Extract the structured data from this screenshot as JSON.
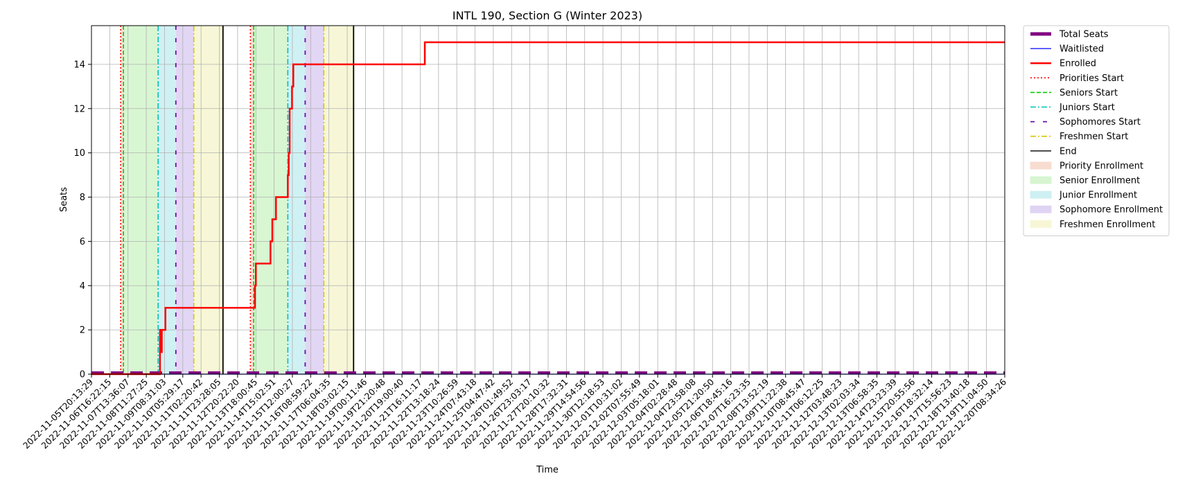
{
  "chart_data": {
    "type": "line",
    "title": "INTL 190, Section G (Winter 2023)",
    "xlabel": "Time",
    "ylabel": "Seats",
    "ylim": [
      0,
      15.75
    ],
    "y_ticks": [
      0,
      2,
      4,
      6,
      8,
      10,
      12,
      14
    ],
    "grid": true,
    "legend_placement": "outside-right-top",
    "x_tick_labels": [
      "2022-11-05T20:13:29",
      "2022-11-06T16:22:15",
      "2022-11-07T13:36:07",
      "2022-11-08T11:27:25",
      "2022-11-09T08:31:03",
      "2022-11-10T05:29:17",
      "2022-11-11T02:20:42",
      "2022-11-11T23:28:05",
      "2022-11-12T20:22:20",
      "2022-11-13T18:00:45",
      "2022-11-14T15:02:51",
      "2022-11-15T12:00:27",
      "2022-11-16T08:59:22",
      "2022-11-17T06:04:35",
      "2022-11-18T03:02:15",
      "2022-11-19T00:11:46",
      "2022-11-19T21:20:48",
      "2022-11-20T19:00:40",
      "2022-11-21T16:11:17",
      "2022-11-22T13:18:24",
      "2022-11-23T10:26:59",
      "2022-11-24T07:43:18",
      "2022-11-25T04:47:42",
      "2022-11-26T01:49:52",
      "2022-11-26T23:03:17",
      "2022-11-27T20:10:32",
      "2022-11-28T17:32:31",
      "2022-11-29T14:54:56",
      "2022-11-30T12:18:53",
      "2022-12-01T10:31:02",
      "2022-12-02T07:55:49",
      "2022-12-03T05:18:01",
      "2022-12-04T02:28:48",
      "2022-12-04T23:58:08",
      "2022-12-05T21:20:50",
      "2022-12-06T18:45:16",
      "2022-12-07T16:23:35",
      "2022-12-08T13:52:19",
      "2022-12-09T11:22:38",
      "2022-12-10T08:45:47",
      "2022-12-11T06:12:25",
      "2022-12-12T03:48:23",
      "2022-12-13T02:03:34",
      "2022-12-13T06:58:35",
      "2022-12-14T23:23:39",
      "2022-12-15T20:55:56",
      "2022-12-16T18:32:14",
      "2022-12-17T15:56:23",
      "2022-12-18T13:40:18",
      "2022-12-19T11:04:50",
      "2022-12-20T08:34:26"
    ],
    "x_range": [
      0,
      50
    ],
    "phases": [
      {
        "name": "Priority Enrollment",
        "start": 1.6,
        "end": 1.75
      },
      {
        "name": "Senior Enrollment",
        "start": 1.75,
        "end": 3.65
      },
      {
        "name": "Junior Enrollment",
        "start": 3.65,
        "end": 4.62
      },
      {
        "name": "Sophomore Enrollment",
        "start": 4.62,
        "end": 5.6
      },
      {
        "name": "Freshmen Enrollment",
        "start": 5.6,
        "end": 7.2
      },
      {
        "name": "Priority Enrollment",
        "start": 8.7,
        "end": 8.88
      },
      {
        "name": "Senior Enrollment",
        "start": 8.88,
        "end": 10.75
      },
      {
        "name": "Junior Enrollment",
        "start": 10.75,
        "end": 11.7
      },
      {
        "name": "Sophomore Enrollment",
        "start": 11.7,
        "end": 12.72
      },
      {
        "name": "Freshmen Enrollment",
        "start": 12.72,
        "end": 14.35
      }
    ],
    "markers": [
      {
        "name": "Priorities Start",
        "x": [
          1.6,
          8.7
        ]
      },
      {
        "name": "Seniors Start",
        "x": [
          1.75,
          8.88
        ]
      },
      {
        "name": "Juniors Start",
        "x": [
          3.65,
          10.75
        ]
      },
      {
        "name": "Sophomores Start",
        "x": [
          4.62,
          11.7
        ]
      },
      {
        "name": "Freshmen Start",
        "x": [
          5.6,
          12.72
        ]
      },
      {
        "name": "End",
        "x": [
          7.2,
          14.35
        ]
      }
    ],
    "series": [
      {
        "name": "Total Seats",
        "x": [
          0,
          50
        ],
        "values": [
          0,
          0
        ]
      },
      {
        "name": "Waitlisted",
        "x": [
          0,
          50
        ],
        "values": [
          0,
          0
        ]
      },
      {
        "name": "Enrolled",
        "x": [
          0,
          3.75,
          3.75,
          3.8,
          3.8,
          3.85,
          3.85,
          4.05,
          4.05,
          8.95,
          8.95,
          9.0,
          9.0,
          9.8,
          9.8,
          9.9,
          9.9,
          10.1,
          10.1,
          10.75,
          10.75,
          10.8,
          10.8,
          10.85,
          10.85,
          10.98,
          10.98,
          11.05,
          11.05,
          18.25,
          18.25,
          50
        ],
        "values": [
          0,
          0,
          2,
          2,
          1,
          1,
          2,
          2,
          3,
          3,
          4,
          4,
          5,
          5,
          6,
          6,
          7,
          7,
          8,
          8,
          9,
          9,
          10,
          10,
          12,
          12,
          13,
          13,
          14,
          14,
          15,
          15
        ]
      }
    ],
    "legend": [
      {
        "label": "Total Seats",
        "kind": "thick",
        "color": "#800080"
      },
      {
        "label": "Waitlisted",
        "kind": "solid",
        "color": "#0000ff"
      },
      {
        "label": "Enrolled",
        "kind": "solidthick",
        "color": "#ff0000"
      },
      {
        "label": "Priorities Start",
        "kind": "dotted",
        "color": "#ff0000"
      },
      {
        "label": "Seniors Start",
        "kind": "dashed",
        "color": "#00cc00"
      },
      {
        "label": "Juniors Start",
        "kind": "dashdot",
        "color": "#00bfbf"
      },
      {
        "label": "Sophomores Start",
        "kind": "loosedash",
        "color": "#6a0dad"
      },
      {
        "label": "Freshmen Start",
        "kind": "dashdot",
        "color": "#d4c500"
      },
      {
        "label": "End",
        "kind": "solid",
        "color": "#000000"
      },
      {
        "label": "Priority Enrollment",
        "kind": "patch",
        "color": "#f8dcd0"
      },
      {
        "label": "Senior Enrollment",
        "kind": "patch",
        "color": "#d6f5d0"
      },
      {
        "label": "Junior Enrollment",
        "kind": "patch",
        "color": "#cef0f2"
      },
      {
        "label": "Sophomore Enrollment",
        "kind": "patch",
        "color": "#e0d4f4"
      },
      {
        "label": "Freshmen Enrollment",
        "kind": "patch",
        "color": "#f7f7d6"
      }
    ]
  }
}
